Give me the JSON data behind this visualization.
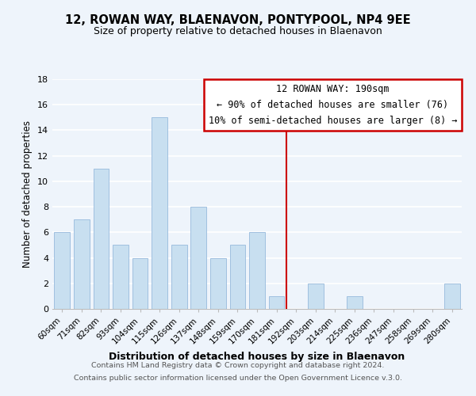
{
  "title": "12, ROWAN WAY, BLAENAVON, PONTYPOOL, NP4 9EE",
  "subtitle": "Size of property relative to detached houses in Blaenavon",
  "xlabel": "Distribution of detached houses by size in Blaenavon",
  "ylabel": "Number of detached properties",
  "bar_labels": [
    "60sqm",
    "71sqm",
    "82sqm",
    "93sqm",
    "104sqm",
    "115sqm",
    "126sqm",
    "137sqm",
    "148sqm",
    "159sqm",
    "170sqm",
    "181sqm",
    "192sqm",
    "203sqm",
    "214sqm",
    "225sqm",
    "236sqm",
    "247sqm",
    "258sqm",
    "269sqm",
    "280sqm"
  ],
  "bar_values": [
    6,
    7,
    11,
    5,
    4,
    15,
    5,
    8,
    4,
    5,
    6,
    1,
    0,
    2,
    0,
    1,
    0,
    0,
    0,
    0,
    2
  ],
  "bar_color": "#c8dff0",
  "bar_edge_color": "#a0c0e0",
  "ylim": [
    0,
    18
  ],
  "yticks": [
    0,
    2,
    4,
    6,
    8,
    10,
    12,
    14,
    16,
    18
  ],
  "property_line_color": "#cc0000",
  "annotation_title": "12 ROWAN WAY: 190sqm",
  "annotation_line1": "← 90% of detached houses are smaller (76)",
  "annotation_line2": "10% of semi-detached houses are larger (8) →",
  "footer1": "Contains HM Land Registry data © Crown copyright and database right 2024.",
  "footer2": "Contains public sector information licensed under the Open Government Licence v.3.0.",
  "background_color": "#eef4fb"
}
